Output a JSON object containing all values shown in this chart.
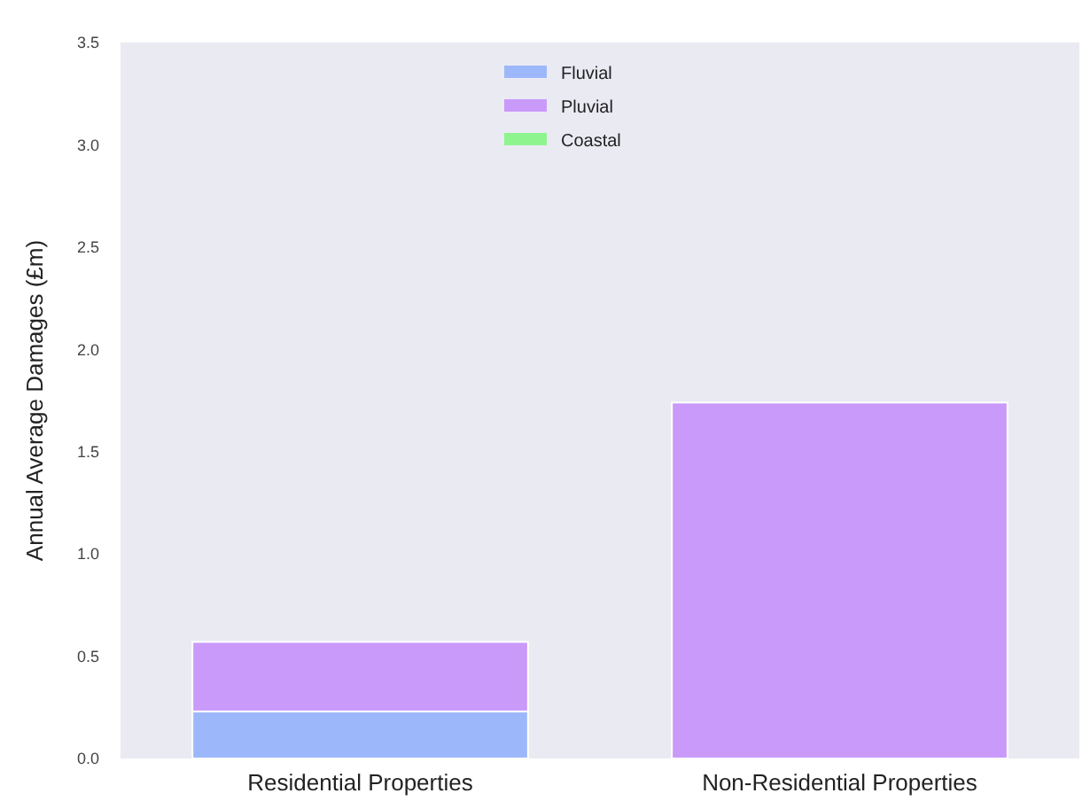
{
  "chart_data": {
    "type": "bar",
    "ylabel": "Annual Average Damages (£m)",
    "categories": [
      "Residential Properties",
      "Non-Residential Properties"
    ],
    "stacked": true,
    "series": [
      {
        "name": "Fluvial",
        "color": "#9db8fa",
        "values": [
          0.23,
          0
        ]
      },
      {
        "name": "Pluvial",
        "color": "#c99afa",
        "values": [
          0.34,
          1.74
        ]
      },
      {
        "name": "Coastal",
        "color": "#8ef58e",
        "values": [
          0,
          0
        ]
      }
    ],
    "ylim": [
      0,
      3.5
    ],
    "yticks": [
      {
        "value": 0,
        "label": "0.0"
      },
      {
        "value": 0.5,
        "label": "0.5"
      },
      {
        "value": 1,
        "label": "1.0"
      },
      {
        "value": 1.5,
        "label": "1.5"
      },
      {
        "value": 2,
        "label": "2.0"
      },
      {
        "value": 2.5,
        "label": "2.5"
      },
      {
        "value": 3,
        "label": "3.0"
      },
      {
        "value": 3.5,
        "label": "3.5"
      }
    ],
    "grid": false,
    "legend": "top"
  }
}
